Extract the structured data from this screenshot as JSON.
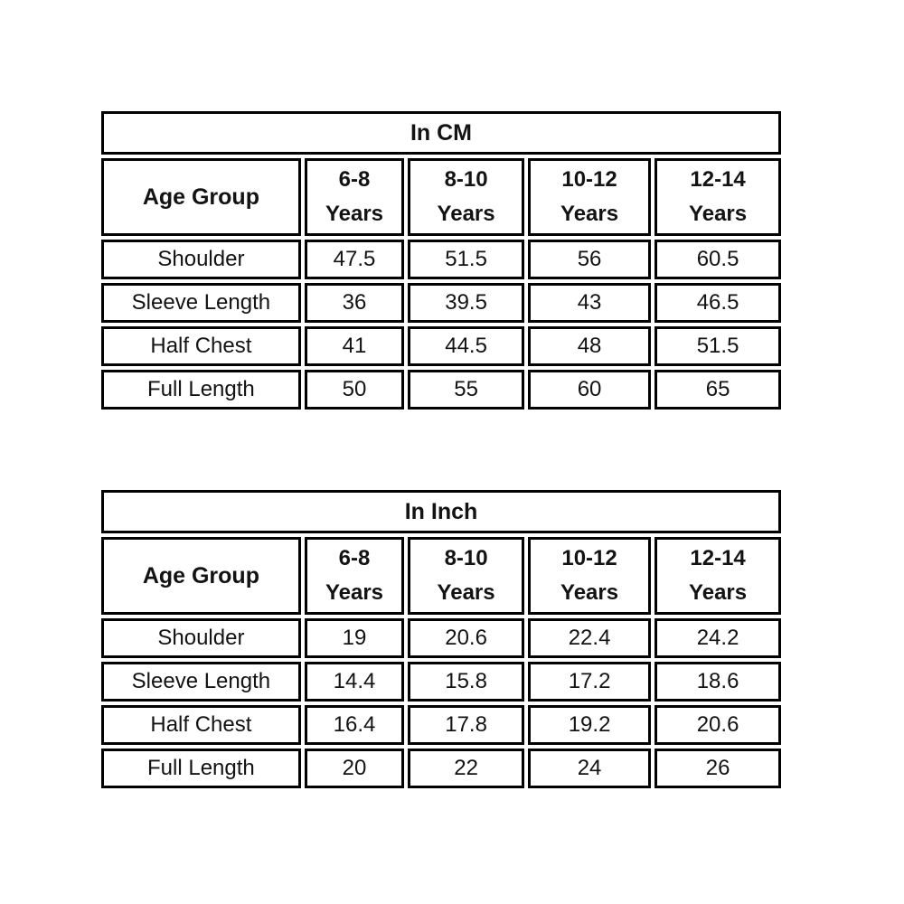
{
  "page": {
    "background_color": "#ffffff",
    "border_color": "#000000",
    "text_color": "#131313"
  },
  "tables": [
    {
      "title": "In CM",
      "corner_header": "Age Group",
      "column_headers": [
        {
          "line1": "6-8",
          "line2": "Years"
        },
        {
          "line1": "8-10",
          "line2": "Years"
        },
        {
          "line1": "10-12",
          "line2": "Years"
        },
        {
          "line1": "12-14",
          "line2": "Years"
        }
      ],
      "rows": [
        {
          "label": "Shoulder",
          "values": [
            "47.5",
            "51.5",
            "56",
            "60.5"
          ]
        },
        {
          "label": "Sleeve Length",
          "values": [
            "36",
            "39.5",
            "43",
            "46.5"
          ]
        },
        {
          "label": "Half Chest",
          "values": [
            "41",
            "44.5",
            "48",
            "51.5"
          ]
        },
        {
          "label": "Full Length",
          "values": [
            "50",
            "55",
            "60",
            "65"
          ]
        }
      ]
    },
    {
      "title": "In Inch",
      "corner_header": "Age Group",
      "column_headers": [
        {
          "line1": "6-8",
          "line2": "Years"
        },
        {
          "line1": "8-10",
          "line2": "Years"
        },
        {
          "line1": "10-12",
          "line2": "Years"
        },
        {
          "line1": "12-14",
          "line2": "Years"
        }
      ],
      "rows": [
        {
          "label": "Shoulder",
          "values": [
            "19",
            "20.6",
            "22.4",
            "24.2"
          ]
        },
        {
          "label": "Sleeve Length",
          "values": [
            "14.4",
            "15.8",
            "17.2",
            "18.6"
          ]
        },
        {
          "label": "Half Chest",
          "values": [
            "16.4",
            "17.8",
            "19.2",
            "20.6"
          ]
        },
        {
          "label": "Full Length",
          "values": [
            "20",
            "22",
            "24",
            "26"
          ]
        }
      ]
    }
  ]
}
